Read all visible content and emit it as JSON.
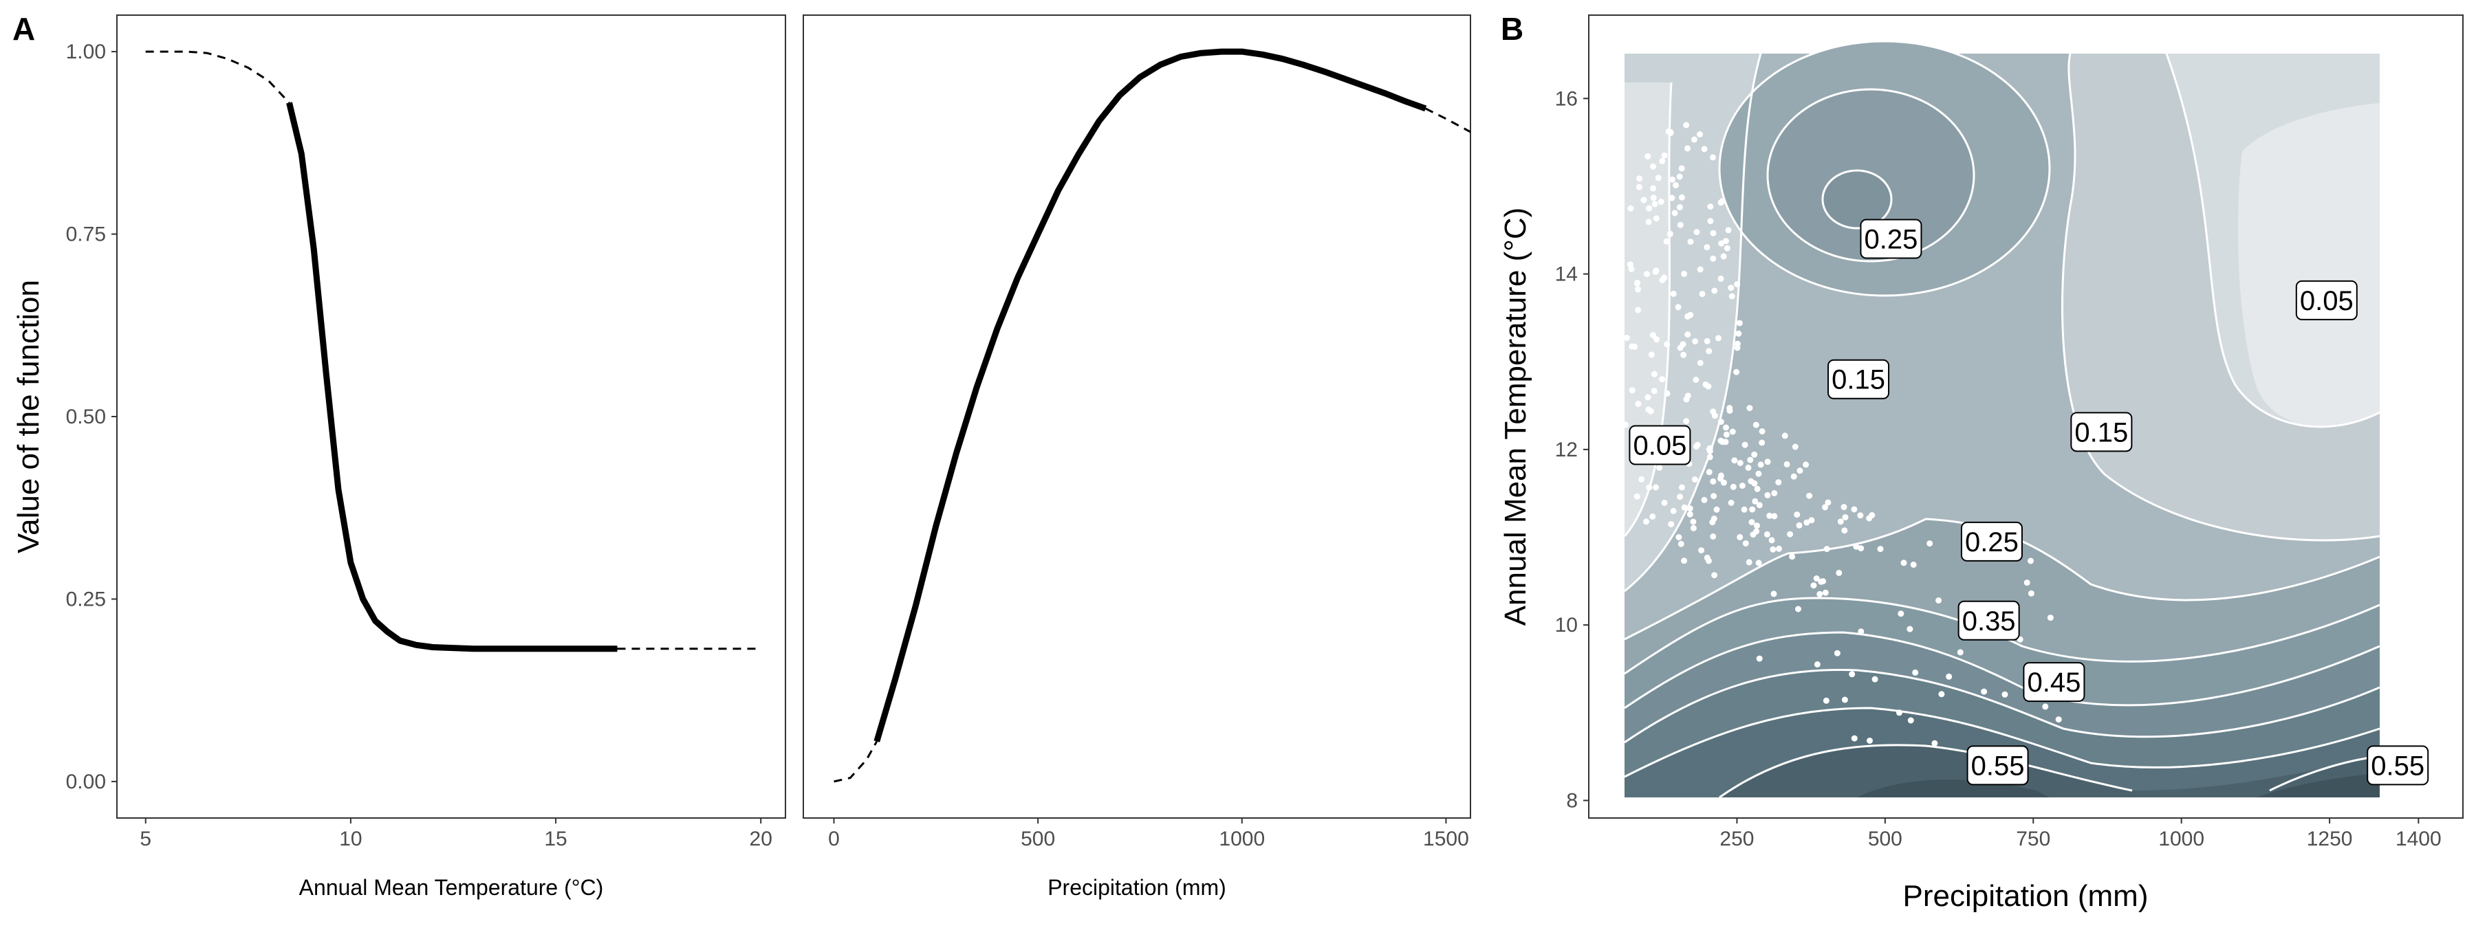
{
  "panels": {
    "a_label": "A",
    "b_label": "B"
  },
  "chart_data": [
    {
      "id": "A1",
      "type": "line",
      "xlabel": "Annual Mean Temperature (°C)",
      "ylabel": "Value of the function",
      "xlim": [
        4.3,
        20.6
      ],
      "ylim": [
        -0.05,
        1.05
      ],
      "x_ticks": [
        5,
        10,
        15,
        20
      ],
      "y_ticks": [
        0.0,
        0.25,
        0.5,
        0.75,
        1.0
      ],
      "y_tick_labels": [
        "0.00",
        "0.25",
        "0.50",
        "0.75",
        "1.00"
      ],
      "series": [
        {
          "name": "extrapolated-low",
          "style": "dashed",
          "x": [
            5.0,
            6.0,
            6.5,
            7.0,
            7.5,
            8.0,
            8.5
          ],
          "y": [
            1.0,
            1.0,
            0.998,
            0.99,
            0.978,
            0.96,
            0.93
          ]
        },
        {
          "name": "observed-range",
          "style": "solid",
          "x": [
            8.5,
            8.8,
            9.1,
            9.4,
            9.7,
            10.0,
            10.3,
            10.6,
            10.9,
            11.2,
            11.6,
            12.0,
            12.5,
            13.0,
            14.0,
            15.0,
            16.0,
            16.5
          ],
          "y": [
            0.93,
            0.86,
            0.73,
            0.56,
            0.4,
            0.3,
            0.25,
            0.22,
            0.205,
            0.193,
            0.187,
            0.184,
            0.183,
            0.182,
            0.182,
            0.182,
            0.182,
            0.182
          ]
        },
        {
          "name": "extrapolated-high",
          "style": "dashed",
          "x": [
            16.5,
            20.0
          ],
          "y": [
            0.182,
            0.182
          ]
        }
      ]
    },
    {
      "id": "A2",
      "type": "line",
      "xlabel": "Precipitation (mm)",
      "ylabel": "",
      "xlim": [
        -75,
        1560
      ],
      "ylim": [
        -0.05,
        1.05
      ],
      "x_ticks": [
        0,
        500,
        1000,
        1500
      ],
      "series": [
        {
          "name": "extrapolated-low",
          "style": "dashed",
          "x": [
            0,
            40,
            80,
            105
          ],
          "y": [
            0.0,
            0.005,
            0.03,
            0.055
          ]
        },
        {
          "name": "observed-range",
          "style": "solid",
          "x": [
            105,
            150,
            200,
            250,
            300,
            350,
            400,
            450,
            500,
            550,
            600,
            650,
            700,
            750,
            800,
            850,
            900,
            950,
            1000,
            1050,
            1100,
            1150,
            1200,
            1250,
            1300,
            1350,
            1400,
            1450
          ],
          "y": [
            0.055,
            0.14,
            0.24,
            0.35,
            0.45,
            0.54,
            0.62,
            0.69,
            0.75,
            0.81,
            0.86,
            0.905,
            0.94,
            0.965,
            0.982,
            0.993,
            0.998,
            1.0,
            1.0,
            0.996,
            0.99,
            0.982,
            0.973,
            0.963,
            0.953,
            0.943,
            0.932,
            0.922
          ]
        },
        {
          "name": "extrapolated-high",
          "style": "dashed",
          "x": [
            1450,
            1500,
            1560
          ],
          "y": [
            0.922,
            0.908,
            0.89
          ]
        }
      ]
    },
    {
      "id": "B",
      "type": "contour",
      "xlabel": "Precipitation (mm)",
      "ylabel": "Annual Mean Temperature (°C)",
      "xlim": [
        0,
        1475
      ],
      "ylim": [
        7.8,
        16.95
      ],
      "x_ticks": [
        250,
        500,
        750,
        1000,
        1250,
        1400
      ],
      "y_ticks": [
        8,
        10,
        12,
        14,
        16
      ],
      "fill_extent": {
        "x": [
          100,
          1420
        ],
        "y": [
          8.2,
          16.5
        ]
      },
      "contour_labels": [
        {
          "text": "0.25",
          "x": 510,
          "y": 14.4
        },
        {
          "text": "0.05",
          "x": 1245,
          "y": 13.7
        },
        {
          "text": "0.15",
          "x": 455,
          "y": 12.8
        },
        {
          "text": "0.15",
          "x": 865,
          "y": 12.2
        },
        {
          "text": "0.05",
          "x": 120,
          "y": 12.05
        },
        {
          "text": "0.25",
          "x": 680,
          "y": 10.95
        },
        {
          "text": "0.35",
          "x": 675,
          "y": 10.05
        },
        {
          "text": "0.45",
          "x": 785,
          "y": 9.35
        },
        {
          "text": "0.55",
          "x": 690,
          "y": 8.4
        },
        {
          "text": "0.55",
          "x": 1365,
          "y": 8.4
        }
      ]
    }
  ]
}
